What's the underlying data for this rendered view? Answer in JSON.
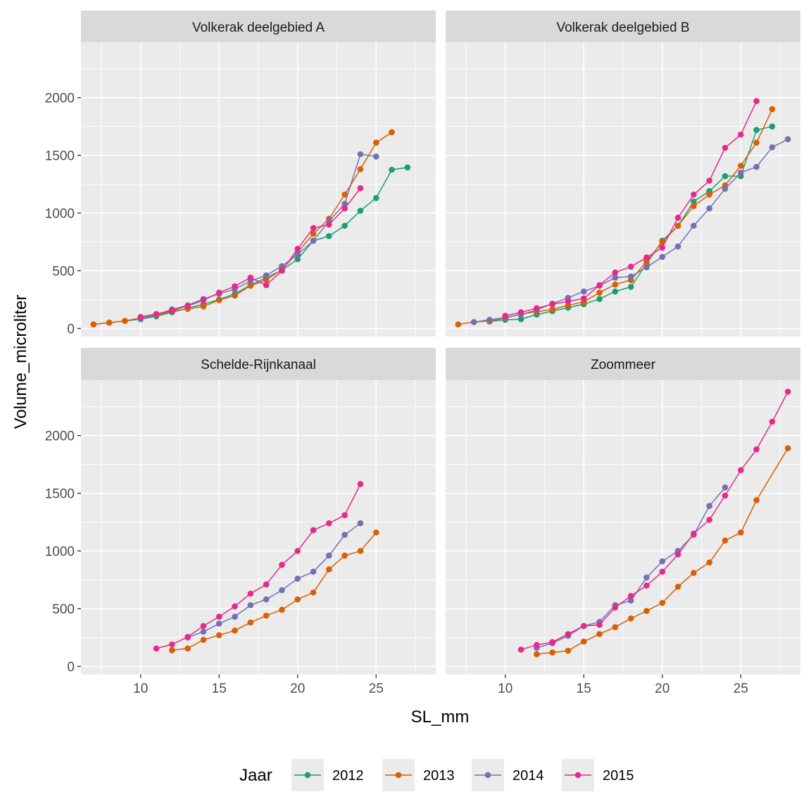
{
  "chart_data": {
    "type": "line",
    "xlabel": "SL_mm",
    "ylabel": "Volume_microliter",
    "xlim": [
      6.2,
      28.8
    ],
    "ylim": [
      -70,
      2480
    ],
    "x_ticks": [
      10,
      15,
      20,
      25
    ],
    "y_ticks": [
      0,
      500,
      1000,
      1500,
      2000
    ],
    "grid": true,
    "legend": {
      "title": "Jaar",
      "position": "bottom",
      "items": [
        "2012",
        "2013",
        "2014",
        "2015"
      ]
    },
    "colors": {
      "2012": "#1b9e77",
      "2013": "#d95f02",
      "2014": "#7570b3",
      "2015": "#e7298a"
    },
    "panels": [
      {
        "title": "Volkerak deelgebied A",
        "series": [
          {
            "name": "2012",
            "x": [
              7,
              8,
              9,
              10,
              11,
              12,
              13,
              14,
              15,
              16,
              17,
              18,
              19,
              20,
              21,
              22,
              23,
              24,
              25,
              26,
              27
            ],
            "y": [
              35,
              50,
              65,
              80,
              105,
              140,
              175,
              210,
              250,
              300,
              375,
              440,
              505,
              600,
              760,
              800,
              890,
              1020,
              1130,
              1375,
              1395
            ]
          },
          {
            "name": "2013",
            "x": [
              7,
              8,
              9,
              10,
              11,
              12,
              13,
              14,
              15,
              16,
              17,
              18,
              19,
              20,
              21,
              22,
              23,
              24,
              25,
              26
            ],
            "y": [
              35,
              50,
              65,
              90,
              115,
              150,
              170,
              190,
              245,
              285,
              370,
              420,
              510,
              660,
              820,
              950,
              1160,
              1380,
              1610,
              1700
            ]
          },
          {
            "name": "2014",
            "x": [
              10,
              11,
              12,
              13,
              14,
              15,
              16,
              17,
              18,
              19,
              20,
              21,
              22,
              23,
              24,
              25
            ],
            "y": [
              85,
              120,
              165,
              200,
              255,
              300,
              340,
              410,
              460,
              540,
              640,
              760,
              930,
              1080,
              1510,
              1490
            ]
          },
          {
            "name": "2015",
            "x": [
              10,
              11,
              12,
              13,
              14,
              15,
              16,
              17,
              18,
              19,
              20,
              21,
              22,
              23,
              24
            ],
            "y": [
              100,
              125,
              155,
              195,
              245,
              310,
              365,
              440,
              375,
              500,
              690,
              870,
              900,
              1040,
              1215
            ]
          }
        ]
      },
      {
        "title": "Volkerak deelgebied B",
        "series": [
          {
            "name": "2012",
            "x": [
              9,
              10,
              11,
              12,
              13,
              14,
              15,
              16,
              17,
              18,
              19,
              20,
              21,
              22,
              23,
              24,
              25,
              26,
              27
            ],
            "y": [
              60,
              75,
              80,
              120,
              150,
              180,
              210,
              255,
              320,
              360,
              560,
              760,
              890,
              1100,
              1190,
              1320,
              1320,
              1720,
              1750
            ]
          },
          {
            "name": "2013",
            "x": [
              7,
              8,
              9,
              10,
              11,
              12,
              13,
              14,
              15,
              16,
              17,
              18,
              19,
              20,
              21,
              22,
              23,
              24,
              25,
              26,
              27
            ],
            "y": [
              35,
              55,
              65,
              90,
              125,
              145,
              165,
              200,
              230,
              310,
              380,
              420,
              580,
              750,
              890,
              1060,
              1160,
              1240,
              1410,
              1610,
              1900
            ]
          },
          {
            "name": "2014",
            "x": [
              8,
              9,
              10,
              11,
              12,
              13,
              14,
              15,
              16,
              17,
              18,
              19,
              20,
              21,
              22,
              23,
              24,
              25,
              26,
              27,
              28
            ],
            "y": [
              55,
              75,
              95,
              120,
              160,
              215,
              265,
              320,
              370,
              440,
              450,
              530,
              620,
              710,
              890,
              1040,
              1210,
              1350,
              1400,
              1570,
              1640
            ]
          },
          {
            "name": "2015",
            "x": [
              10,
              11,
              12,
              13,
              14,
              15,
              16,
              17,
              18,
              19,
              20,
              21,
              22,
              23,
              24,
              25,
              26
            ],
            "y": [
              110,
              140,
              175,
              210,
              235,
              260,
              375,
              485,
              535,
              615,
              700,
              960,
              1160,
              1280,
              1565,
              1680,
              1970
            ]
          }
        ]
      },
      {
        "title": "Schelde-Rijnkanaal",
        "series": [
          {
            "name": "2013",
            "x": [
              12,
              13,
              14,
              15,
              16,
              17,
              18,
              19,
              20,
              21,
              22,
              23,
              24,
              25
            ],
            "y": [
              140,
              155,
              230,
              270,
              310,
              380,
              440,
              490,
              580,
              640,
              840,
              960,
              1000,
              1160
            ]
          },
          {
            "name": "2014",
            "x": [
              13,
              14,
              15,
              16,
              17,
              18,
              19,
              20,
              21,
              22,
              23,
              24
            ],
            "y": [
              250,
              300,
              370,
              430,
              530,
              580,
              660,
              760,
              820,
              960,
              1140,
              1240
            ]
          },
          {
            "name": "2015",
            "x": [
              11,
              12,
              13,
              14,
              15,
              16,
              17,
              18,
              19,
              20,
              21,
              22,
              23,
              24
            ],
            "y": [
              155,
              190,
              255,
              350,
              430,
              520,
              630,
              710,
              880,
              1000,
              1180,
              1240,
              1310,
              1580
            ]
          }
        ]
      },
      {
        "title": "Zoommeer",
        "series": [
          {
            "name": "2013",
            "x": [
              12,
              13,
              14,
              15,
              16,
              17,
              18,
              19,
              20,
              21,
              22,
              23,
              24,
              25,
              26,
              28
            ],
            "y": [
              105,
              120,
              135,
              215,
              280,
              340,
              415,
              480,
              550,
              690,
              810,
              900,
              1090,
              1160,
              1440,
              1890
            ]
          },
          {
            "name": "2014",
            "x": [
              12,
              13,
              14,
              15,
              16,
              17,
              18,
              19,
              20,
              21,
              22,
              23,
              24
            ],
            "y": [
              160,
              200,
              265,
              350,
              385,
              530,
              570,
              770,
              910,
              1000,
              1140,
              1390,
              1550
            ]
          },
          {
            "name": "2015",
            "x": [
              11,
              12,
              13,
              14,
              15,
              16,
              17,
              18,
              19,
              20,
              21,
              22,
              23,
              24,
              25,
              26,
              27,
              28
            ],
            "y": [
              145,
              185,
              210,
              280,
              350,
              360,
              510,
              610,
              700,
              820,
              970,
              1150,
              1270,
              1480,
              1700,
              1880,
              2120,
              2380
            ]
          }
        ]
      }
    ]
  }
}
